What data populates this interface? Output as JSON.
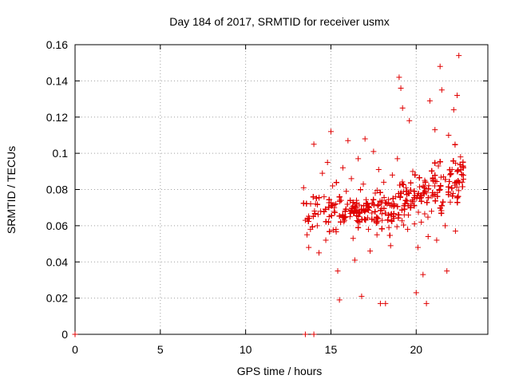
{
  "chart_data": {
    "type": "scatter",
    "title": "Day 184 of 2017, SRMTID for receiver usmx",
    "xlabel": "GPS time / hours",
    "ylabel": "SRMTID / TECUs",
    "xlim": [
      0,
      24.2
    ],
    "ylim": [
      0,
      0.16
    ],
    "grid": true,
    "x_ticks": [
      0,
      5,
      10,
      15,
      20
    ],
    "x_tick_labels": [
      "0",
      "5",
      "10",
      "15",
      "20"
    ],
    "y_ticks": [
      0,
      0.02,
      0.04,
      0.06,
      0.08,
      0.1,
      0.12,
      0.14,
      0.16
    ],
    "y_tick_labels": [
      "0",
      "0.02",
      "0.04",
      "0.06",
      "0.08",
      "0.1",
      "0.12",
      "0.14",
      "0.16"
    ],
    "marker": "plus",
    "color": "#e00000",
    "series": [
      {
        "name": "SRMTID",
        "points": [
          [
            0.0,
            0.0
          ],
          [
            13.5,
            0.0
          ],
          [
            14.0,
            0.0
          ],
          [
            13.4,
            0.081
          ],
          [
            13.5,
            0.063
          ],
          [
            13.6,
            0.055
          ],
          [
            13.7,
            0.048
          ],
          [
            13.8,
            0.058
          ],
          [
            14.0,
            0.105
          ],
          [
            14.1,
            0.072
          ],
          [
            14.2,
            0.06
          ],
          [
            14.3,
            0.045
          ],
          [
            14.4,
            0.068
          ],
          [
            14.5,
            0.089
          ],
          [
            14.6,
            0.076
          ],
          [
            14.7,
            0.052
          ],
          [
            14.8,
            0.095
          ],
          [
            14.9,
            0.065
          ],
          [
            15.0,
            0.112
          ],
          [
            15.1,
            0.082
          ],
          [
            15.2,
            0.07
          ],
          [
            15.3,
            0.058
          ],
          [
            15.4,
            0.035
          ],
          [
            15.5,
            0.019
          ],
          [
            15.6,
            0.074
          ],
          [
            15.7,
            0.092
          ],
          [
            15.8,
            0.063
          ],
          [
            15.9,
            0.079
          ],
          [
            16.0,
            0.107
          ],
          [
            16.1,
            0.068
          ],
          [
            16.2,
            0.086
          ],
          [
            16.3,
            0.053
          ],
          [
            16.4,
            0.041
          ],
          [
            16.5,
            0.074
          ],
          [
            16.6,
            0.097
          ],
          [
            16.7,
            0.062
          ],
          [
            16.8,
            0.021
          ],
          [
            16.9,
            0.083
          ],
          [
            17.0,
            0.108
          ],
          [
            17.1,
            0.071
          ],
          [
            17.2,
            0.058
          ],
          [
            17.3,
            0.046
          ],
          [
            17.4,
            0.067
          ],
          [
            17.5,
            0.101
          ],
          [
            17.6,
            0.078
          ],
          [
            17.7,
            0.055
          ],
          [
            17.8,
            0.091
          ],
          [
            17.9,
            0.017
          ],
          [
            18.0,
            0.063
          ],
          [
            18.1,
            0.084
          ],
          [
            18.2,
            0.017
          ],
          [
            18.3,
            0.072
          ],
          [
            18.4,
            0.059
          ],
          [
            18.5,
            0.049
          ],
          [
            18.6,
            0.088
          ],
          [
            18.7,
            0.064
          ],
          [
            18.8,
            0.076
          ],
          [
            18.9,
            0.097
          ],
          [
            19.0,
            0.142
          ],
          [
            19.1,
            0.136
          ],
          [
            19.2,
            0.125
          ],
          [
            19.3,
            0.066
          ],
          [
            19.4,
            0.081
          ],
          [
            19.5,
            0.058
          ],
          [
            19.6,
            0.118
          ],
          [
            19.7,
            0.072
          ],
          [
            19.8,
            0.09
          ],
          [
            19.9,
            0.061
          ],
          [
            20.0,
            0.023
          ],
          [
            20.1,
            0.048
          ],
          [
            20.2,
            0.075
          ],
          [
            20.3,
            0.062
          ],
          [
            20.4,
            0.033
          ],
          [
            20.5,
            0.085
          ],
          [
            20.6,
            0.017
          ],
          [
            20.7,
            0.054
          ],
          [
            20.8,
            0.129
          ],
          [
            20.9,
            0.068
          ],
          [
            21.0,
            0.077
          ],
          [
            21.1,
            0.113
          ],
          [
            21.2,
            0.052
          ],
          [
            21.3,
            0.093
          ],
          [
            21.4,
            0.148
          ],
          [
            21.5,
            0.135
          ],
          [
            21.6,
            0.087
          ],
          [
            21.7,
            0.06
          ],
          [
            21.8,
            0.035
          ],
          [
            21.9,
            0.11
          ],
          [
            22.0,
            0.073
          ],
          [
            22.1,
            0.091
          ],
          [
            22.2,
            0.124
          ],
          [
            22.3,
            0.057
          ],
          [
            22.4,
            0.132
          ],
          [
            22.5,
            0.154
          ],
          [
            22.6,
            0.098
          ],
          [
            22.7,
            0.084
          ]
        ]
      }
    ],
    "cloud_points": 1500,
    "cloud_x_range": [
      13.4,
      22.8
    ]
  }
}
